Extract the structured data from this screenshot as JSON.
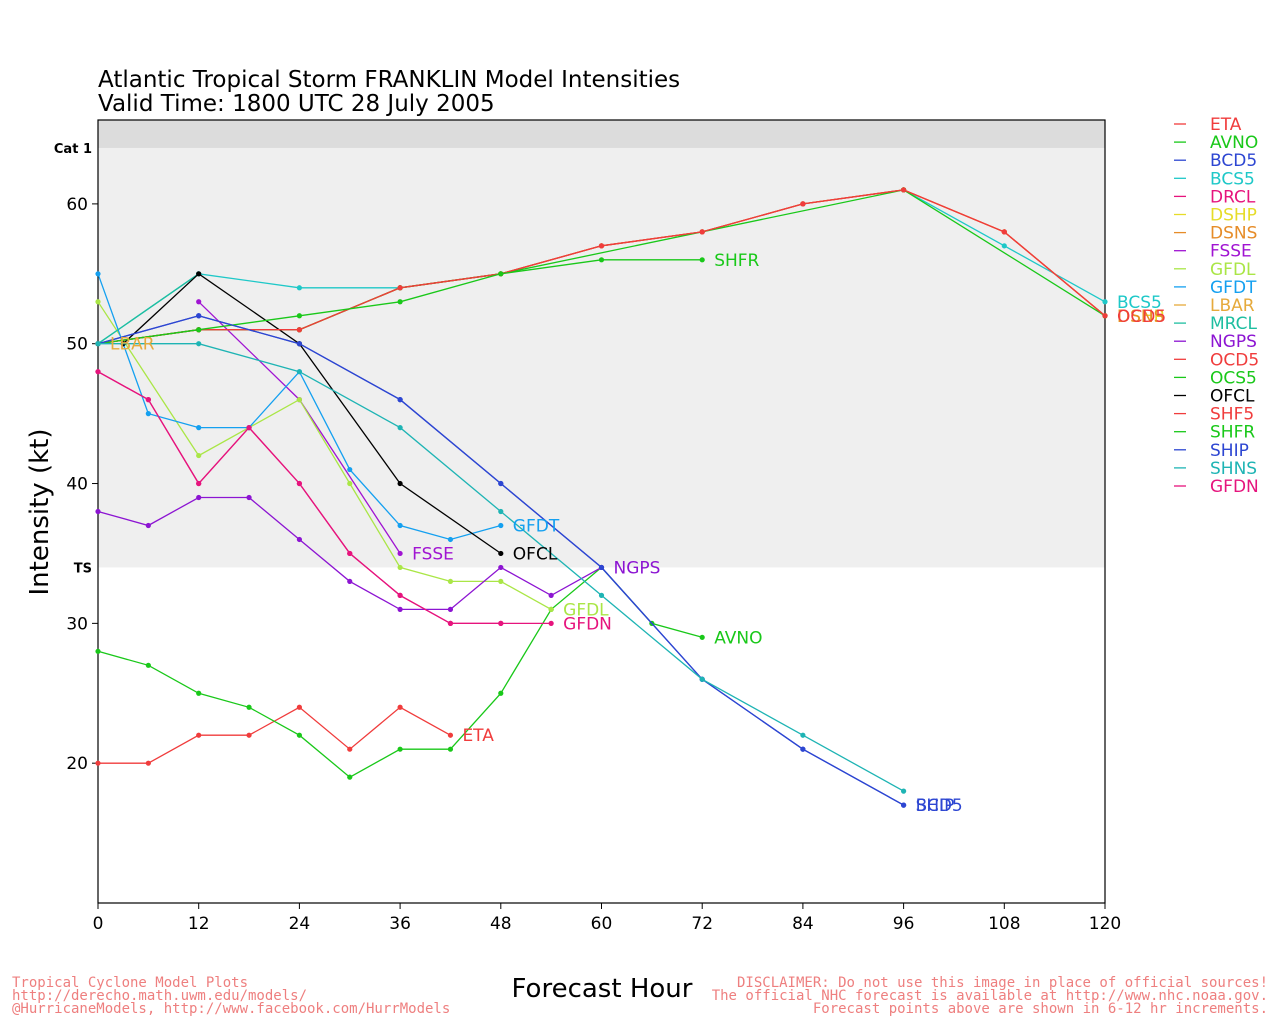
{
  "header": {
    "title": "Atlantic Tropical Storm FRANKLIN Model Intensities",
    "subtitle": "Valid Time: 1800 UTC 28 July 2005"
  },
  "footer": {
    "left": [
      "Tropical Cyclone Model Plots",
      "http://derecho.math.uwm.edu/models/",
      "@HurricaneModels, http://www.facebook.com/HurrModels"
    ],
    "right": [
      "DISCLAIMER: Do not use this image in place of official sources!",
      "The official NHC forecast is available at http://www.nhc.noaa.gov.",
      "Forecast points above are shown in 6-12 hr increments."
    ]
  },
  "chart_data": {
    "type": "line",
    "title": "Atlantic Tropical Storm FRANKLIN Model Intensities",
    "subtitle": "Valid Time: 1800 UTC 28 July 2005",
    "xlabel": "Forecast Hour",
    "ylabel": "Intensity (kt)",
    "xlim": [
      0,
      120
    ],
    "ylim": [
      10,
      64
    ],
    "xticks": [
      0,
      12,
      24,
      36,
      48,
      60,
      72,
      84,
      96,
      108,
      120
    ],
    "yticks": [
      20,
      30,
      40,
      50,
      60
    ],
    "bands": [
      {
        "label": "TS",
        "from": 34,
        "to": 64,
        "color": "#efefef"
      },
      {
        "label": "Cat 1",
        "from": 64,
        "to": 66,
        "color": "#dcdcdc"
      }
    ],
    "legend_position": "right",
    "series": [
      {
        "name": "ETA",
        "color": "#f03c3c",
        "label": "ETA",
        "points": [
          [
            0,
            20
          ],
          [
            6,
            20
          ],
          [
            12,
            22
          ],
          [
            18,
            22
          ],
          [
            24,
            24
          ],
          [
            30,
            21
          ],
          [
            36,
            24
          ],
          [
            42,
            22
          ]
        ]
      },
      {
        "name": "AVNO",
        "color": "#19c819",
        "label": "AVNO",
        "points": [
          [
            0,
            28
          ],
          [
            6,
            27
          ],
          [
            12,
            25
          ],
          [
            18,
            24
          ],
          [
            24,
            22
          ],
          [
            30,
            19
          ],
          [
            36,
            21
          ],
          [
            42,
            21
          ],
          [
            48,
            25
          ],
          [
            54,
            31
          ],
          [
            60,
            34
          ],
          [
            66,
            30
          ],
          [
            72,
            29
          ]
        ]
      },
      {
        "name": "BCD5",
        "color": "#2d46d2",
        "label": "BCD5",
        "points": [
          [
            0,
            50
          ],
          [
            12,
            52
          ],
          [
            24,
            50
          ],
          [
            36,
            46
          ],
          [
            48,
            40
          ],
          [
            60,
            34
          ],
          [
            72,
            26
          ],
          [
            84,
            21
          ],
          [
            96,
            17
          ]
        ]
      },
      {
        "name": "BCS5",
        "color": "#1ec8c8",
        "label": "BCS5",
        "points": [
          [
            0,
            50
          ],
          [
            12,
            55
          ],
          [
            24,
            54
          ],
          [
            36,
            54
          ],
          [
            48,
            55
          ],
          [
            60,
            57
          ],
          [
            72,
            58
          ],
          [
            84,
            60
          ],
          [
            96,
            61
          ],
          [
            108,
            57
          ],
          [
            120,
            53
          ]
        ]
      },
      {
        "name": "DRCL",
        "color": "#e6147d",
        "label": "",
        "points": [
          [
            0,
            48
          ],
          [
            6,
            46
          ],
          [
            12,
            40
          ],
          [
            18,
            44
          ],
          [
            24,
            40
          ],
          [
            30,
            35
          ],
          [
            36,
            32
          ],
          [
            42,
            30
          ],
          [
            48,
            30
          ]
        ]
      },
      {
        "name": "DSHP",
        "color": "#e6dc28",
        "label": "DSHP",
        "points": [
          [
            0,
            50
          ],
          [
            12,
            51
          ],
          [
            24,
            51
          ],
          [
            36,
            54
          ],
          [
            48,
            55
          ],
          [
            60,
            57
          ],
          [
            72,
            58
          ],
          [
            84,
            60
          ],
          [
            96,
            61
          ],
          [
            108,
            58
          ],
          [
            120,
            52
          ]
        ]
      },
      {
        "name": "DSNS",
        "color": "#e68c28",
        "label": "DSNS",
        "points": [
          [
            0,
            50
          ],
          [
            12,
            51
          ],
          [
            24,
            51
          ],
          [
            36,
            54
          ],
          [
            48,
            55
          ],
          [
            60,
            57
          ],
          [
            72,
            58
          ],
          [
            84,
            60
          ],
          [
            96,
            61
          ],
          [
            108,
            58
          ],
          [
            120,
            52
          ]
        ]
      },
      {
        "name": "FSSE",
        "color": "#a014d2",
        "label": "FSSE",
        "points": [
          [
            12,
            53
          ],
          [
            24,
            46
          ],
          [
            36,
            35
          ]
        ]
      },
      {
        "name": "GFDL",
        "color": "#aae646",
        "label": "GFDL",
        "points": [
          [
            0,
            53
          ],
          [
            12,
            42
          ],
          [
            24,
            46
          ],
          [
            30,
            40
          ],
          [
            36,
            34
          ],
          [
            42,
            33
          ],
          [
            48,
            33
          ],
          [
            54,
            31
          ]
        ]
      },
      {
        "name": "GFDT",
        "color": "#14a0f0",
        "label": "GFDT",
        "points": [
          [
            0,
            55
          ],
          [
            6,
            45
          ],
          [
            12,
            44
          ],
          [
            18,
            44
          ],
          [
            24,
            48
          ],
          [
            30,
            41
          ],
          [
            36,
            37
          ],
          [
            42,
            36
          ],
          [
            48,
            37
          ]
        ]
      },
      {
        "name": "LBAR",
        "color": "#e6aa3c",
        "label": "LBAR",
        "points": [
          [
            0,
            50
          ]
        ]
      },
      {
        "name": "MRCL",
        "color": "#1ebea0",
        "label": "",
        "points": [
          [
            0,
            50
          ],
          [
            12,
            55
          ]
        ]
      },
      {
        "name": "NGPS",
        "color": "#8c14d2",
        "label": "NGPS",
        "points": [
          [
            0,
            38
          ],
          [
            6,
            37
          ],
          [
            12,
            39
          ],
          [
            18,
            39
          ],
          [
            24,
            36
          ],
          [
            30,
            33
          ],
          [
            36,
            31
          ],
          [
            42,
            31
          ],
          [
            48,
            34
          ],
          [
            54,
            32
          ],
          [
            60,
            34
          ]
        ]
      },
      {
        "name": "OCD5",
        "color": "#f03c3c",
        "label": "OCD5",
        "points": [
          [
            0,
            50
          ],
          [
            12,
            51
          ],
          [
            24,
            51
          ],
          [
            36,
            54
          ],
          [
            48,
            55
          ],
          [
            60,
            57
          ],
          [
            72,
            58
          ],
          [
            84,
            60
          ],
          [
            96,
            61
          ],
          [
            108,
            58
          ],
          [
            120,
            52
          ]
        ]
      },
      {
        "name": "OCS5",
        "color": "#19c819",
        "label": "",
        "points": [
          [
            0,
            50
          ],
          [
            12,
            51
          ],
          [
            24,
            51
          ],
          [
            36,
            54
          ],
          [
            48,
            55
          ],
          [
            96,
            61
          ],
          [
            120,
            52
          ]
        ]
      },
      {
        "name": "OFCL",
        "color": "#000000",
        "label": "OFCL",
        "points": [
          [
            3,
            50
          ],
          [
            12,
            55
          ],
          [
            24,
            50
          ],
          [
            36,
            40
          ],
          [
            48,
            35
          ]
        ]
      },
      {
        "name": "SHF5",
        "color": "#f03c3c",
        "label": "",
        "points": [
          [
            0,
            50
          ],
          [
            12,
            51
          ],
          [
            24,
            51
          ],
          [
            36,
            54
          ],
          [
            48,
            55
          ],
          [
            60,
            57
          ],
          [
            72,
            58
          ],
          [
            84,
            60
          ],
          [
            96,
            61
          ],
          [
            108,
            58
          ],
          [
            120,
            52
          ]
        ]
      },
      {
        "name": "SHFR",
        "color": "#19c819",
        "label": "SHFR",
        "points": [
          [
            0,
            50
          ],
          [
            12,
            51
          ],
          [
            24,
            52
          ],
          [
            36,
            53
          ],
          [
            48,
            55
          ],
          [
            60,
            56
          ],
          [
            72,
            56
          ]
        ]
      },
      {
        "name": "SHIP",
        "color": "#2d46d2",
        "label": "SHIP",
        "points": [
          [
            0,
            50
          ],
          [
            12,
            52
          ],
          [
            24,
            50
          ],
          [
            36,
            46
          ],
          [
            48,
            40
          ],
          [
            60,
            34
          ],
          [
            72,
            26
          ],
          [
            84,
            21
          ],
          [
            96,
            17
          ]
        ]
      },
      {
        "name": "SHNS",
        "color": "#1eb4b4",
        "label": "",
        "points": [
          [
            0,
            50
          ],
          [
            12,
            50
          ],
          [
            24,
            48
          ],
          [
            36,
            44
          ],
          [
            48,
            38
          ],
          [
            60,
            32
          ],
          [
            72,
            26
          ],
          [
            84,
            22
          ],
          [
            96,
            18
          ]
        ]
      },
      {
        "name": "GFDN",
        "color": "#e6147d",
        "label": "GFDN",
        "points": [
          [
            0,
            48
          ],
          [
            6,
            46
          ],
          [
            12,
            40
          ],
          [
            18,
            44
          ],
          [
            24,
            40
          ],
          [
            30,
            35
          ],
          [
            36,
            32
          ],
          [
            42,
            30
          ],
          [
            48,
            30
          ],
          [
            54,
            30
          ]
        ]
      }
    ]
  }
}
